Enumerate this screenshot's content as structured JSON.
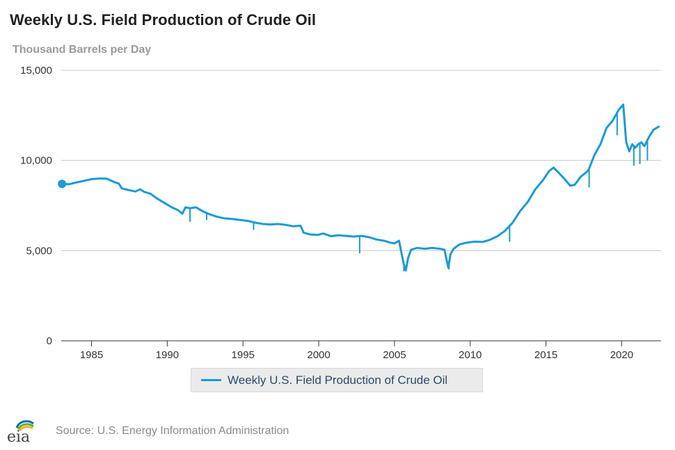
{
  "colors": {
    "series": "#1a9ad7",
    "grid": "#c8c8c8",
    "axis": "#333333"
  },
  "chart_data": {
    "type": "line",
    "title": "Weekly U.S. Field Production of Crude Oil",
    "ylabel": "Thousand Barrels per Day",
    "xlabel": "",
    "ylim": [
      0,
      15000
    ],
    "xlim": [
      1983.0,
      2022.6
    ],
    "x_ticks": [
      "1985",
      "1990",
      "1995",
      "2000",
      "2005",
      "2010",
      "2015",
      "2020"
    ],
    "y_ticks": [
      "0",
      "5,000",
      "10,000",
      "15,000"
    ],
    "grid": true,
    "legend_position": "bottom-center",
    "series": [
      {
        "name": "Weekly U.S. Field Production of Crude Oil",
        "color": "#1a9ad7",
        "points": [
          [
            1983.05,
            8700
          ],
          [
            1983.5,
            8680
          ],
          [
            1984.0,
            8780
          ],
          [
            1984.5,
            8870
          ],
          [
            1985.0,
            8960
          ],
          [
            1985.5,
            9000
          ],
          [
            1986.0,
            8990
          ],
          [
            1986.5,
            8800
          ],
          [
            1986.8,
            8720
          ],
          [
            1987.0,
            8450
          ],
          [
            1987.5,
            8350
          ],
          [
            1987.9,
            8280
          ],
          [
            1988.2,
            8400
          ],
          [
            1988.5,
            8250
          ],
          [
            1988.9,
            8150
          ],
          [
            1989.3,
            7900
          ],
          [
            1989.8,
            7650
          ],
          [
            1990.3,
            7400
          ],
          [
            1990.7,
            7250
          ],
          [
            1991.0,
            7050
          ],
          [
            1991.2,
            7400
          ],
          [
            1991.5,
            7350
          ],
          [
            1991.9,
            7400
          ],
          [
            1992.3,
            7200
          ],
          [
            1992.7,
            7050
          ],
          [
            1993.2,
            6900
          ],
          [
            1993.7,
            6800
          ],
          [
            1994.3,
            6750
          ],
          [
            1994.8,
            6700
          ],
          [
            1995.3,
            6650
          ],
          [
            1995.8,
            6550
          ],
          [
            1996.3,
            6480
          ],
          [
            1996.8,
            6450
          ],
          [
            1997.3,
            6480
          ],
          [
            1997.8,
            6430
          ],
          [
            1998.3,
            6350
          ],
          [
            1998.8,
            6380
          ],
          [
            1999.0,
            6000
          ],
          [
            1999.4,
            5900
          ],
          [
            1999.9,
            5870
          ],
          [
            2000.3,
            5950
          ],
          [
            2000.8,
            5800
          ],
          [
            2001.3,
            5850
          ],
          [
            2001.8,
            5820
          ],
          [
            2002.3,
            5780
          ],
          [
            2002.8,
            5820
          ],
          [
            2003.3,
            5750
          ],
          [
            2003.8,
            5620
          ],
          [
            2004.3,
            5550
          ],
          [
            2004.7,
            5450
          ],
          [
            2005.0,
            5400
          ],
          [
            2005.3,
            5550
          ],
          [
            2005.6,
            4300
          ],
          [
            2005.75,
            3900
          ],
          [
            2005.9,
            4600
          ],
          [
            2006.1,
            5050
          ],
          [
            2006.5,
            5150
          ],
          [
            2007.0,
            5100
          ],
          [
            2007.5,
            5150
          ],
          [
            2008.0,
            5100
          ],
          [
            2008.3,
            5050
          ],
          [
            2008.55,
            4050
          ],
          [
            2008.7,
            4800
          ],
          [
            2008.9,
            5100
          ],
          [
            2009.3,
            5350
          ],
          [
            2009.8,
            5450
          ],
          [
            2010.3,
            5500
          ],
          [
            2010.8,
            5480
          ],
          [
            2011.3,
            5600
          ],
          [
            2011.8,
            5800
          ],
          [
            2012.3,
            6100
          ],
          [
            2012.8,
            6550
          ],
          [
            2013.3,
            7200
          ],
          [
            2013.8,
            7700
          ],
          [
            2014.3,
            8400
          ],
          [
            2014.8,
            8900
          ],
          [
            2015.2,
            9400
          ],
          [
            2015.5,
            9600
          ],
          [
            2015.8,
            9350
          ],
          [
            2016.2,
            9000
          ],
          [
            2016.6,
            8600
          ],
          [
            2016.9,
            8650
          ],
          [
            2017.3,
            9100
          ],
          [
            2017.6,
            9300
          ],
          [
            2017.8,
            9450
          ],
          [
            2018.2,
            10300
          ],
          [
            2018.6,
            10900
          ],
          [
            2019.0,
            11800
          ],
          [
            2019.4,
            12200
          ],
          [
            2019.8,
            12800
          ],
          [
            2020.1,
            13100
          ],
          [
            2020.3,
            11000
          ],
          [
            2020.5,
            10500
          ],
          [
            2020.7,
            10900
          ],
          [
            2020.9,
            10700
          ],
          [
            2021.1,
            10900
          ],
          [
            2021.3,
            11000
          ],
          [
            2021.5,
            10800
          ],
          [
            2021.8,
            11300
          ],
          [
            2022.1,
            11700
          ],
          [
            2022.5,
            11900
          ]
        ],
        "dips": [
          [
            1991.5,
            6600
          ],
          [
            1992.6,
            6700
          ],
          [
            1995.7,
            6150
          ],
          [
            2002.7,
            4850
          ],
          [
            2005.62,
            3850
          ],
          [
            2008.6,
            3950
          ],
          [
            2012.6,
            5500
          ],
          [
            2017.85,
            8500
          ],
          [
            2019.7,
            11400
          ],
          [
            2020.8,
            9700
          ],
          [
            2021.2,
            9800
          ],
          [
            2021.7,
            10000
          ]
        ],
        "start_marker": [
          1983.05,
          8700
        ]
      }
    ]
  },
  "source": {
    "logo_text": "eia",
    "label": "Source: U.S. Energy Information Administration"
  }
}
